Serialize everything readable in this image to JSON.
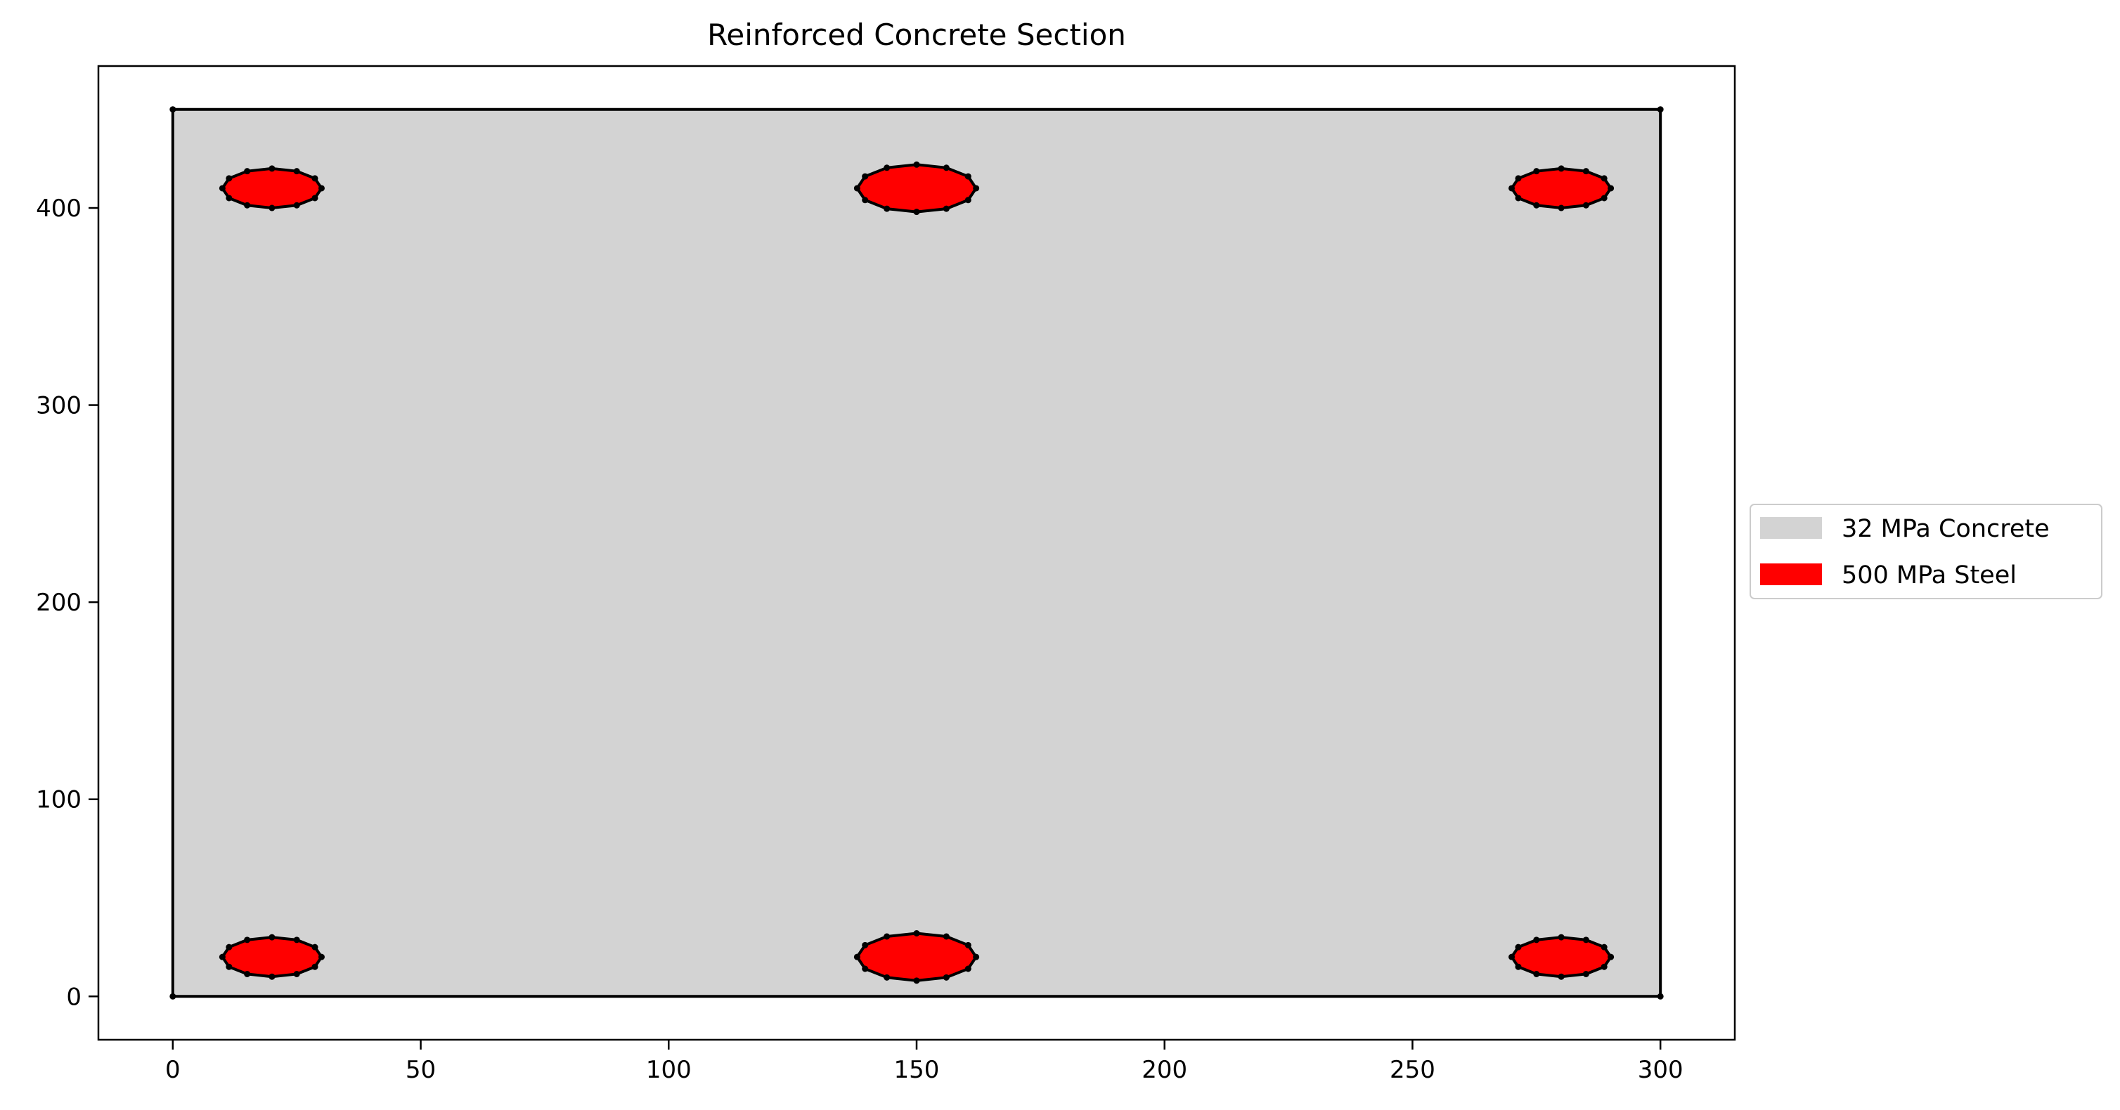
{
  "chart_data": {
    "type": "section",
    "title": "Reinforced Concrete Section",
    "xlabel": "",
    "ylabel": "",
    "xlim": [
      -15,
      315
    ],
    "ylim": [
      -22,
      472
    ],
    "x_ticks": [
      0,
      50,
      100,
      150,
      200,
      250,
      300
    ],
    "y_ticks": [
      0,
      100,
      200,
      300,
      400
    ],
    "grid": false,
    "legend_position": "center-right outside",
    "colors": {
      "concrete": "#d3d3d3",
      "steel": "#ff0000",
      "edge": "#000000"
    },
    "legend": [
      {
        "label": "32 MPa Concrete",
        "color": "#d3d3d3"
      },
      {
        "label": "500 MPa Steel",
        "color": "#ff0000"
      }
    ],
    "concrete": {
      "name": "32 MPa Concrete",
      "vertices": [
        [
          0,
          0
        ],
        [
          300,
          0
        ],
        [
          300,
          450
        ],
        [
          0,
          450
        ]
      ]
    },
    "bars": [
      {
        "material": "500 MPa Steel",
        "cx": 20,
        "cy": 20,
        "diameter": 20,
        "segments": 12
      },
      {
        "material": "500 MPa Steel",
        "cx": 150,
        "cy": 20,
        "diameter": 24,
        "segments": 12
      },
      {
        "material": "500 MPa Steel",
        "cx": 280,
        "cy": 20,
        "diameter": 20,
        "segments": 12
      },
      {
        "material": "500 MPa Steel",
        "cx": 20,
        "cy": 410,
        "diameter": 20,
        "segments": 12
      },
      {
        "material": "500 MPa Steel",
        "cx": 150,
        "cy": 410,
        "diameter": 24,
        "segments": 12
      },
      {
        "material": "500 MPa Steel",
        "cx": 280,
        "cy": 410,
        "diameter": 20,
        "segments": 12
      }
    ]
  }
}
